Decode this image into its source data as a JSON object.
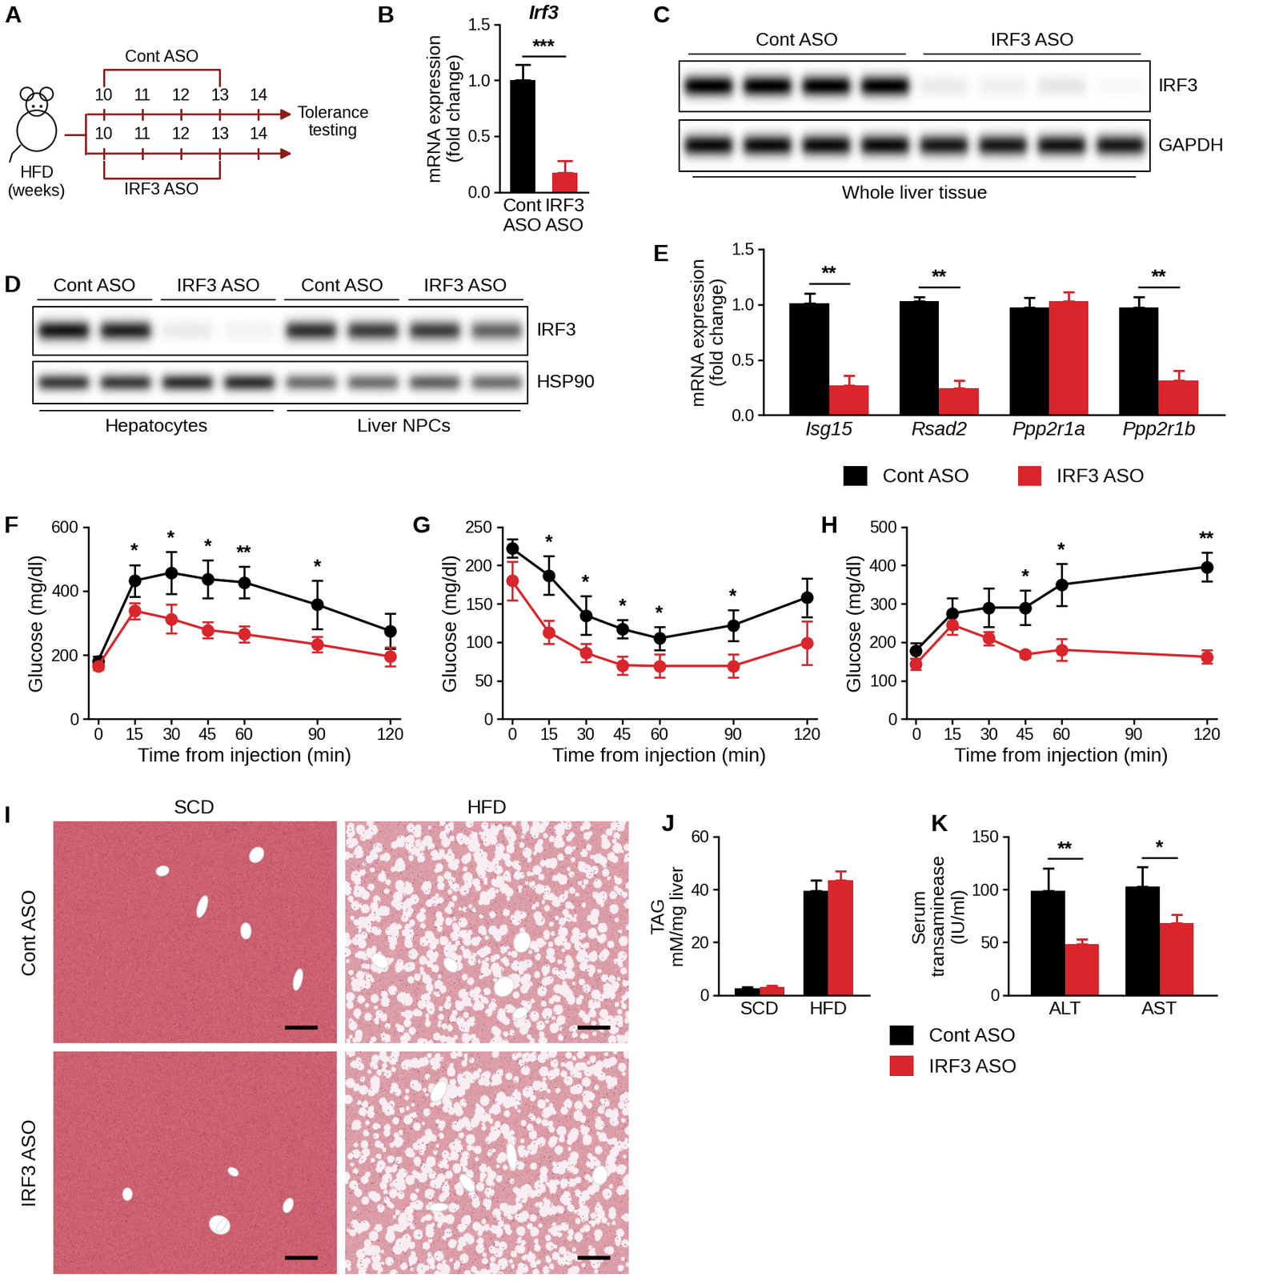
{
  "chart_data": [
    {
      "panel": "B",
      "type": "bar",
      "title": "Irf3",
      "y_label": "mRNA expression\n(fold change)",
      "categories": [
        "Cont\nASO",
        "IRF3\nASO"
      ],
      "colors": [
        "#000000",
        "#d9252b"
      ],
      "series": [
        {
          "values": [
            1.0,
            0.17
          ],
          "errors": [
            0.14,
            0.11
          ]
        }
      ],
      "significance": "***",
      "ylim": [
        0,
        1.5
      ],
      "yticks": [
        {
          "value": 0,
          "label": "0.0"
        },
        {
          "value": 0.5,
          "label": "0.5"
        },
        {
          "value": 1.0,
          "label": "1.0"
        },
        {
          "value": 1.5,
          "label": "1.5"
        }
      ]
    },
    {
      "panel": "E",
      "type": "bar",
      "y_label": "mRNA expression\n(fold change)",
      "categories": [
        "Isg15",
        "Rsad2",
        "Ppp2r1a",
        "Ppp2r1b"
      ],
      "series": [
        {
          "name": "Cont ASO",
          "color": "#000000",
          "values": [
            1.01,
            1.03,
            0.97,
            0.97
          ],
          "errors": [
            0.09,
            0.04,
            0.09,
            0.1
          ]
        },
        {
          "name": "IRF3 ASO",
          "color": "#d9252b",
          "values": [
            0.27,
            0.24,
            1.03,
            0.31
          ],
          "errors": [
            0.09,
            0.07,
            0.08,
            0.09
          ]
        }
      ],
      "significance": [
        "**",
        "**",
        null,
        "**"
      ],
      "legend": "below",
      "ylim": [
        0,
        1.5
      ],
      "yticks": [
        {
          "value": 0,
          "label": "0.0"
        },
        {
          "value": 0.5,
          "label": "0.5"
        },
        {
          "value": 1.0,
          "label": "1.0"
        },
        {
          "value": 1.5,
          "label": "1.5"
        }
      ]
    },
    {
      "panel": "F",
      "type": "line",
      "x_label": "Time from injection (min)",
      "y_label": "Glucose (mg/dl)",
      "x": [
        0,
        15,
        30,
        45,
        60,
        90,
        120
      ],
      "series": [
        {
          "color": "#000000",
          "marker": "circle",
          "line_style": "solid",
          "values": [
            180,
            432,
            457,
            437,
            427,
            357,
            275
          ],
          "errors": [
            15,
            50,
            65,
            60,
            50,
            75,
            55
          ]
        },
        {
          "color": "#d9252b",
          "marker": "circle",
          "line_style": "solid",
          "values": [
            165,
            338,
            313,
            278,
            265,
            233,
            195
          ],
          "errors": [
            12,
            25,
            45,
            25,
            25,
            25,
            30
          ]
        }
      ],
      "significance": [
        null,
        "*",
        "*",
        "*",
        "**",
        "*",
        null
      ],
      "xlim": [
        -4,
        124
      ],
      "xticks": [
        0,
        15,
        30,
        45,
        60,
        90,
        120
      ],
      "ylim": [
        0,
        600
      ],
      "yticks": [
        0,
        200,
        400,
        600
      ]
    },
    {
      "panel": "G",
      "type": "line",
      "x_label": "Time from injection (min)",
      "y_label": "Glucose (mg/dl)",
      "x": [
        0,
        15,
        30,
        45,
        60,
        90,
        120
      ],
      "series": [
        {
          "color": "#000000",
          "marker": "circle",
          "line_style": "solid",
          "values": [
            222,
            187,
            135,
            117,
            105,
            122,
            158
          ],
          "errors": [
            12,
            25,
            25,
            12,
            15,
            20,
            25
          ]
        },
        {
          "color": "#d9252b",
          "marker": "circle",
          "line_style": "solid",
          "values": [
            180,
            113,
            86,
            70,
            69,
            69,
            99
          ],
          "errors": [
            25,
            15,
            12,
            12,
            15,
            15,
            28
          ]
        }
      ],
      "significance": [
        null,
        "*",
        "*",
        "*",
        "*",
        "*",
        null
      ],
      "xlim": [
        -4,
        124
      ],
      "xticks": [
        0,
        15,
        30,
        45,
        60,
        90,
        120
      ],
      "ylim": [
        0,
        250
      ],
      "yticks": [
        0,
        50,
        100,
        150,
        200,
        250
      ]
    },
    {
      "panel": "H",
      "type": "line",
      "x_label": "Time from injection (min)",
      "y_label": "Glucose (mg/dl)",
      "x": [
        0,
        15,
        30,
        45,
        60,
        120
      ],
      "series": [
        {
          "color": "#000000",
          "marker": "circle",
          "line_style": "solid",
          "values": [
            178,
            275,
            290,
            290,
            350,
            396
          ],
          "errors": [
            20,
            40,
            50,
            45,
            55,
            38
          ]
        },
        {
          "color": "#d9252b",
          "marker": "circle",
          "line_style": "solid",
          "values": [
            143,
            245,
            210,
            168,
            180,
            162
          ],
          "errors": [
            15,
            25,
            18,
            8,
            28,
            18
          ]
        }
      ],
      "significance": [
        null,
        null,
        null,
        "*",
        "*",
        "**"
      ],
      "xlim": [
        -4,
        124
      ],
      "xticks": [
        0,
        15,
        30,
        45,
        60,
        90,
        120
      ],
      "ylim": [
        0,
        500
      ],
      "yticks": [
        0,
        100,
        200,
        300,
        400,
        500
      ]
    },
    {
      "panel": "J",
      "type": "bar",
      "y_label": "TAG\nmM/mg liver",
      "categories": [
        "SCD",
        "HFD"
      ],
      "series": [
        {
          "name": "Cont ASO",
          "color": "#000000",
          "values": [
            2.5,
            39.5
          ],
          "errors": [
            0.5,
            4.0
          ]
        },
        {
          "name": "IRF3 ASO",
          "color": "#d9252b",
          "values": [
            3.0,
            43.5
          ],
          "errors": [
            0.6,
            3.5
          ]
        }
      ],
      "significance": [
        null,
        null
      ],
      "legend": "below right",
      "ylim": [
        0,
        60
      ],
      "yticks": [
        0,
        20,
        40,
        60
      ]
    },
    {
      "panel": "K",
      "type": "bar",
      "y_label": "Serum\ntransaminease\n(IU/ml)",
      "categories": [
        "ALT",
        "AST"
      ],
      "series": [
        {
          "color": "#000000",
          "values": [
            99,
            103
          ],
          "errors": [
            21,
            18
          ]
        },
        {
          "color": "#d9252b",
          "values": [
            48,
            68
          ],
          "errors": [
            5,
            8
          ]
        }
      ],
      "significance": [
        "**",
        "*"
      ],
      "ylim": [
        0,
        150
      ],
      "yticks": [
        0,
        50,
        100,
        150
      ]
    }
  ],
  "diagram": {
    "panel": "A",
    "weeks": [
      10,
      11,
      12,
      13,
      14
    ],
    "bracket": [
      10,
      13
    ],
    "top_label": "Cont ASO",
    "bottom_label": "IRF3 ASO",
    "start_label": "HFD\n(weeks)",
    "end_label": "Tolerance\ntesting"
  },
  "blots": [
    {
      "panel": "C",
      "headers": [
        "Cont ASO",
        "IRF3 ASO"
      ],
      "footers": [
        "Whole liver tissue"
      ],
      "rows": [
        {
          "name": "IRF3",
          "intensities": [
            1.0,
            1.0,
            1.0,
            1.0,
            0.08,
            0.06,
            0.1,
            0.03
          ]
        },
        {
          "name": "GAPDH",
          "intensities": [
            0.95,
            0.95,
            0.95,
            0.95,
            0.9,
            0.9,
            0.92,
            0.9
          ]
        }
      ]
    },
    {
      "panel": "D",
      "headers": [
        "Cont ASO",
        "IRF3 ASO",
        "Cont ASO",
        "IRF3 ASO"
      ],
      "footers": [
        "Hepatocytes",
        "Liver NPCs"
      ],
      "rows": [
        {
          "name": "IRF3",
          "intensities": [
            0.9,
            0.85,
            0.08,
            0.05,
            0.8,
            0.75,
            0.75,
            0.6
          ]
        },
        {
          "name": "HSP90",
          "intensities": [
            0.75,
            0.75,
            0.8,
            0.8,
            0.55,
            0.55,
            0.6,
            0.55
          ]
        }
      ]
    }
  ],
  "histology": {
    "panel": "I",
    "columns": [
      "SCD",
      "HFD"
    ],
    "rows": [
      "Cont ASO",
      "IRF3 ASO"
    ]
  }
}
